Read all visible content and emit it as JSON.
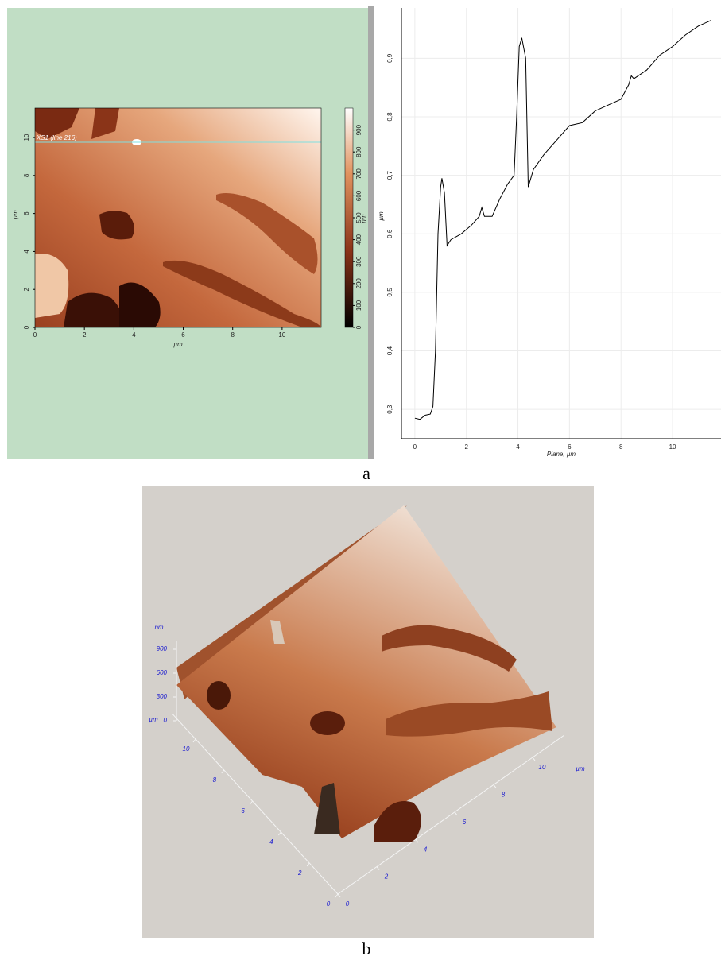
{
  "captions": [
    "a",
    "b"
  ],
  "chart_data": [
    {
      "type": "image",
      "annotation": "XS1 (line 216)",
      "xlabel": "µm",
      "ylabel": "µm",
      "xlim": [
        0,
        11.58
      ],
      "ylim": [
        0,
        11.55
      ],
      "xticks": [
        0,
        2,
        4,
        6,
        8,
        10
      ],
      "yticks": [
        0,
        2,
        4,
        6,
        8,
        10
      ],
      "colorbar": {
        "label": "nm",
        "lim": [
          0,
          1000
        ],
        "ticks": [
          0,
          100,
          200,
          300,
          400,
          500,
          600,
          700,
          800,
          900
        ]
      }
    },
    {
      "type": "line",
      "xlabel": "Plane, µm",
      "ylabel": "µm",
      "color": "#000000",
      "grid": true,
      "x": [
        0,
        0.2,
        0.4,
        0.6,
        0.7,
        0.8,
        0.85,
        0.9,
        1.0,
        1.05,
        1.15,
        1.25,
        1.4,
        1.8,
        2.2,
        2.5,
        2.6,
        2.7,
        3.0,
        3.3,
        3.6,
        3.85,
        3.95,
        4.05,
        4.15,
        4.3,
        4.4,
        4.6,
        5.0,
        5.5,
        6.0,
        6.5,
        7.0,
        7.5,
        8.0,
        8.3,
        8.4,
        8.5,
        9.0,
        9.5,
        10.0,
        10.5,
        11.0,
        11.5
      ],
      "values": [
        0.285,
        0.283,
        0.29,
        0.292,
        0.305,
        0.4,
        0.5,
        0.6,
        0.68,
        0.695,
        0.67,
        0.58,
        0.59,
        0.6,
        0.615,
        0.63,
        0.645,
        0.63,
        0.63,
        0.66,
        0.685,
        0.7,
        0.8,
        0.92,
        0.935,
        0.9,
        0.68,
        0.71,
        0.735,
        0.76,
        0.785,
        0.79,
        0.81,
        0.82,
        0.83,
        0.855,
        0.87,
        0.865,
        0.88,
        0.905,
        0.92,
        0.94,
        0.955,
        0.965
      ],
      "xlim": [
        -0.52,
        11.88
      ],
      "ylim": [
        0.25,
        0.986
      ],
      "xticks": [
        0,
        2,
        4,
        6,
        8,
        10
      ],
      "yticks": [
        {
          "value": 0.3,
          "label": "0,3"
        },
        {
          "value": 0.4,
          "label": "0,4"
        },
        {
          "value": 0.5,
          "label": "0,5"
        },
        {
          "value": 0.6,
          "label": "0,6"
        },
        {
          "value": 0.7,
          "label": "0,7"
        },
        {
          "value": 0.8,
          "label": "0,8"
        },
        {
          "value": 0.9,
          "label": "0,9"
        }
      ]
    },
    {
      "type": "surface",
      "xlabel": "µm",
      "ylabel": "µm",
      "zlabel": "nm",
      "xlim": [
        0,
        11.6
      ],
      "ylim": [
        0,
        11.6
      ],
      "xticks": [
        0,
        2,
        4,
        6,
        8,
        10
      ],
      "yticks": [
        0,
        2,
        4,
        6,
        8,
        10
      ],
      "zticks": [
        0,
        300,
        600,
        900
      ]
    }
  ]
}
